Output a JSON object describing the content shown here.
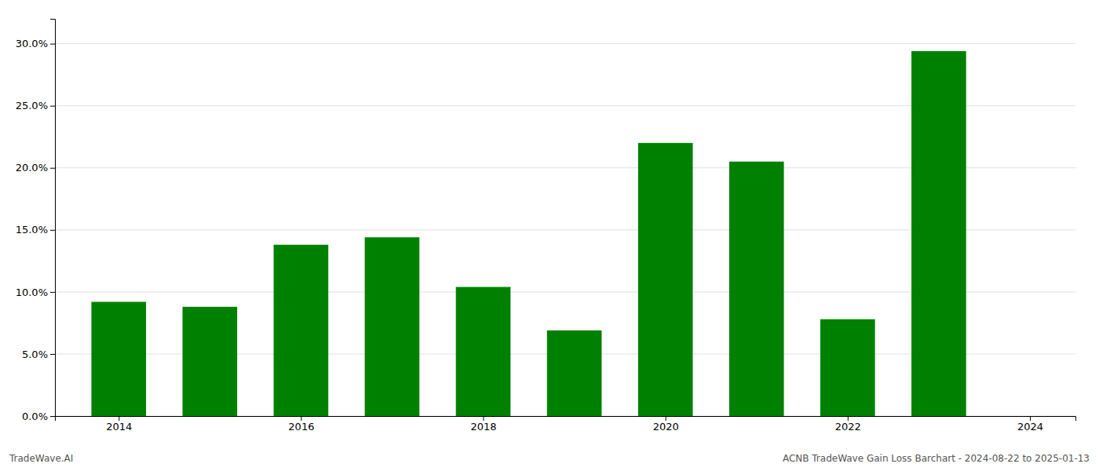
{
  "chart_data": {
    "type": "bar",
    "x": [
      2014,
      2015,
      2016,
      2017,
      2018,
      2019,
      2020,
      2021,
      2022,
      2023
    ],
    "values": [
      0.092,
      0.088,
      0.138,
      0.144,
      0.104,
      0.069,
      0.22,
      0.205,
      0.078,
      0.294
    ],
    "color": "#008000",
    "xlim": [
      2013.3,
      2024.5
    ],
    "xticks": [
      2014,
      2016,
      2018,
      2020,
      2022,
      2024
    ],
    "ylim": [
      0,
      0.32
    ],
    "yticks": [
      {
        "value": 0.0,
        "label": "0.0%"
      },
      {
        "value": 0.05,
        "label": "5.0%"
      },
      {
        "value": 0.1,
        "label": "10.0%"
      },
      {
        "value": 0.15,
        "label": "15.0%"
      },
      {
        "value": 0.2,
        "label": "20.0%"
      },
      {
        "value": 0.25,
        "label": "25.0%"
      },
      {
        "value": 0.3,
        "label": "30.0%"
      }
    ],
    "grid": true,
    "annotations": [
      "TradeWave.AI",
      "ACNB TradeWave Gain Loss Barchart - 2024-08-22 to 2025-01-13"
    ]
  }
}
